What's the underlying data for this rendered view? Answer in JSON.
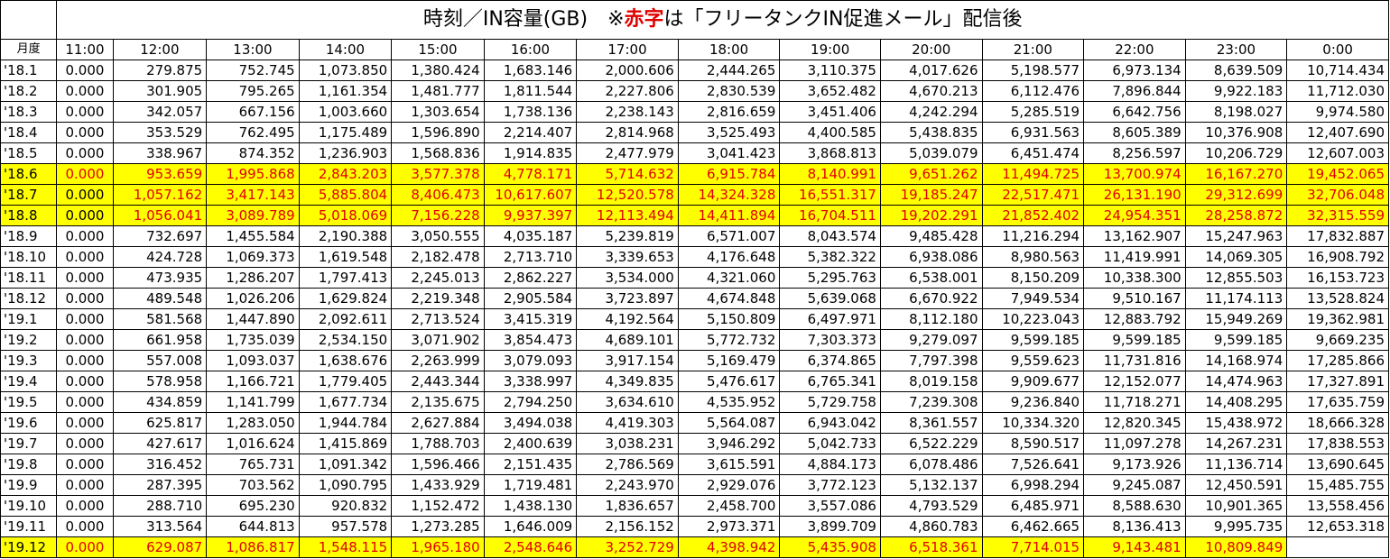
{
  "title": {
    "prefix": "時刻／IN容量(GB)　※",
    "red": "赤字",
    "suffix": "は「フリータンクIN促進メール」配信後"
  },
  "headers": [
    "月度",
    "11:00",
    "12:00",
    "13:00",
    "14:00",
    "15:00",
    "16:00",
    "17:00",
    "18:00",
    "19:00",
    "20:00",
    "21:00",
    "22:00",
    "23:00",
    "0:00"
  ],
  "colors": {
    "highlight": "#ffff00",
    "red_text": "#e00000"
  },
  "rows": [
    {
      "label": "'18.1",
      "hl": false,
      "values": [
        "0.000",
        "279.875",
        "752.745",
        "1,073.850",
        "1,380.424",
        "1,683.146",
        "2,000.606",
        "2,444.265",
        "3,110.375",
        "4,017.626",
        "5,198.577",
        "6,973.134",
        "8,639.509",
        "10,714.434"
      ]
    },
    {
      "label": "'18.2",
      "hl": false,
      "values": [
        "0.000",
        "301.905",
        "795.265",
        "1,161.354",
        "1,481.777",
        "1,811.544",
        "2,227.806",
        "2,830.539",
        "3,652.482",
        "4,670.213",
        "6,112.476",
        "7,896.844",
        "9,922.183",
        "11,712.030"
      ]
    },
    {
      "label": "'18.3",
      "hl": false,
      "values": [
        "0.000",
        "342.057",
        "667.156",
        "1,003.660",
        "1,303.654",
        "1,738.136",
        "2,238.143",
        "2,816.659",
        "3,451.406",
        "4,242.294",
        "5,285.519",
        "6,642.756",
        "8,198.027",
        "9,974.580"
      ]
    },
    {
      "label": "'18.4",
      "hl": false,
      "values": [
        "0.000",
        "353.529",
        "762.495",
        "1,175.489",
        "1,596.890",
        "2,214.407",
        "2,814.968",
        "3,525.493",
        "4,400.585",
        "5,438.835",
        "6,931.563",
        "8,605.389",
        "10,376.908",
        "12,407.690"
      ]
    },
    {
      "label": "'18.5",
      "hl": false,
      "values": [
        "0.000",
        "338.967",
        "874.352",
        "1,236.903",
        "1,568.836",
        "1,914.835",
        "2,477.979",
        "3,041.423",
        "3,868.813",
        "5,039.079",
        "6,451.474",
        "8,256.597",
        "10,206.729",
        "12,607.003"
      ]
    },
    {
      "label": "'18.6",
      "hl": true,
      "values": [
        "0.000",
        "953.659",
        "1,995.868",
        "2,843.203",
        "3,577.378",
        "4,778.171",
        "5,714.632",
        "6,915.784",
        "8,140.991",
        "9,651.262",
        "11,494.725",
        "13,700.974",
        "16,167.270",
        "19,452.065"
      ]
    },
    {
      "label": "'18.7",
      "hl": true,
      "first_black": true,
      "values": [
        "0.000",
        "1,057.162",
        "3,417.143",
        "5,885.804",
        "8,406.473",
        "10,617.607",
        "12,520.578",
        "14,324.328",
        "16,551.317",
        "19,185.247",
        "22,517.471",
        "26,131.190",
        "29,312.699",
        "32,706.048"
      ]
    },
    {
      "label": "'18.8",
      "hl": true,
      "first_black": true,
      "values": [
        "0.000",
        "1,056.041",
        "3,089.789",
        "5,018.069",
        "7,156.228",
        "9,937.397",
        "12,113.494",
        "14,411.894",
        "16,704.511",
        "19,202.291",
        "21,852.402",
        "24,954.351",
        "28,258.872",
        "32,315.559"
      ]
    },
    {
      "label": "'18.9",
      "hl": false,
      "values": [
        "0.000",
        "732.697",
        "1,455.584",
        "2,190.388",
        "3,050.555",
        "4,035.187",
        "5,239.819",
        "6,571.007",
        "8,043.574",
        "9,485.428",
        "11,216.294",
        "13,162.907",
        "15,247.963",
        "17,832.887"
      ]
    },
    {
      "label": "'18.10",
      "hl": false,
      "values": [
        "0.000",
        "424.728",
        "1,069.373",
        "1,619.548",
        "2,182.478",
        "2,713.710",
        "3,339.653",
        "4,176.648",
        "5,382.322",
        "6,938.086",
        "8,980.563",
        "11,419.991",
        "14,069.305",
        "16,908.792"
      ]
    },
    {
      "label": "'18.11",
      "hl": false,
      "values": [
        "0.000",
        "473.935",
        "1,286.207",
        "1,797.413",
        "2,245.013",
        "2,862.227",
        "3,534.000",
        "4,321.060",
        "5,295.763",
        "6,538.001",
        "8,150.209",
        "10,338.300",
        "12,855.503",
        "16,153.723"
      ]
    },
    {
      "label": "'18.12",
      "hl": false,
      "values": [
        "0.000",
        "489.548",
        "1,026.206",
        "1,629.824",
        "2,219.348",
        "2,905.584",
        "3,723.897",
        "4,674.848",
        "5,639.068",
        "6,670.922",
        "7,949.534",
        "9,510.167",
        "11,174.113",
        "13,528.824"
      ]
    },
    {
      "label": "'19.1",
      "hl": false,
      "values": [
        "0.000",
        "581.568",
        "1,447.890",
        "2,092.611",
        "2,713.524",
        "3,415.319",
        "4,192.564",
        "5,150.809",
        "6,497.971",
        "8,112.180",
        "10,223.043",
        "12,883.792",
        "15,949.269",
        "19,362.981"
      ]
    },
    {
      "label": "'19.2",
      "hl": false,
      "values": [
        "0.000",
        "661.958",
        "1,735.039",
        "2,534.150",
        "3,071.902",
        "3,854.473",
        "4,689.101",
        "5,772.732",
        "7,303.373",
        "9,279.097",
        "9,599.185",
        "9,599.185",
        "9,599.185",
        "9,669.235"
      ]
    },
    {
      "label": "'19.3",
      "hl": false,
      "values": [
        "0.000",
        "557.008",
        "1,093.037",
        "1,638.676",
        "2,263.999",
        "3,079.093",
        "3,917.154",
        "5,169.479",
        "6,374.865",
        "7,797.398",
        "9,559.623",
        "11,731.816",
        "14,168.974",
        "17,285.866"
      ]
    },
    {
      "label": "'19.4",
      "hl": false,
      "values": [
        "0.000",
        "578.958",
        "1,166.721",
        "1,779.405",
        "2,443.344",
        "3,338.997",
        "4,349.835",
        "5,476.617",
        "6,765.341",
        "8,019.158",
        "9,909.677",
        "12,152.077",
        "14,474.963",
        "17,327.891"
      ]
    },
    {
      "label": "'19.5",
      "hl": false,
      "values": [
        "0.000",
        "434.859",
        "1,141.799",
        "1,677.734",
        "2,135.675",
        "2,794.250",
        "3,634.610",
        "4,535.952",
        "5,729.758",
        "7,239.308",
        "9,236.840",
        "11,718.271",
        "14,408.295",
        "17,635.759"
      ]
    },
    {
      "label": "'19.6",
      "hl": false,
      "values": [
        "0.000",
        "625.817",
        "1,283.050",
        "1,944.784",
        "2,627.884",
        "3,494.038",
        "4,419.303",
        "5,564.087",
        "6,943.042",
        "8,361.557",
        "10,334.320",
        "12,820.345",
        "15,438.972",
        "18,666.328"
      ]
    },
    {
      "label": "'19.7",
      "hl": false,
      "values": [
        "0.000",
        "427.617",
        "1,016.624",
        "1,415.869",
        "1,788.703",
        "2,400.639",
        "3,038.231",
        "3,946.292",
        "5,042.733",
        "6,522.229",
        "8,590.517",
        "11,097.278",
        "14,267.231",
        "17,838.553"
      ]
    },
    {
      "label": "'19.8",
      "hl": false,
      "values": [
        "0.000",
        "316.452",
        "765.731",
        "1,091.342",
        "1,596.466",
        "2,151.435",
        "2,786.569",
        "3,615.591",
        "4,884.173",
        "6,078.486",
        "7,526.641",
        "9,173.926",
        "11,136.714",
        "13,690.645"
      ]
    },
    {
      "label": "'19.9",
      "hl": false,
      "values": [
        "0.000",
        "287.395",
        "703.562",
        "1,090.795",
        "1,433.929",
        "1,719.481",
        "2,243.970",
        "2,929.076",
        "3,772.123",
        "5,132.137",
        "6,998.294",
        "9,245.087",
        "12,450.591",
        "15,485.755"
      ]
    },
    {
      "label": "'19.10",
      "hl": false,
      "values": [
        "0.000",
        "288.710",
        "695.230",
        "920.832",
        "1,152.472",
        "1,438.130",
        "1,836.657",
        "2,458.700",
        "3,557.086",
        "4,793.529",
        "6,485.971",
        "8,588.630",
        "10,901.365",
        "13,558.456"
      ]
    },
    {
      "label": "'19.11",
      "hl": false,
      "values": [
        "0.000",
        "313.564",
        "644.813",
        "957.578",
        "1,273.285",
        "1,646.009",
        "2,156.152",
        "2,973.371",
        "3,899.709",
        "4,860.783",
        "6,462.665",
        "8,136.413",
        "9,995.735",
        "12,653.318"
      ]
    },
    {
      "label": "'19.12",
      "hl": true,
      "values": [
        "0.000",
        "629.087",
        "1,086.817",
        "1,548.115",
        "1,965.180",
        "2,548.646",
        "3,252.729",
        "4,398.942",
        "5,435.908",
        "6,518.361",
        "7,714.015",
        "9,143.481",
        "10,809.849",
        ""
      ]
    }
  ]
}
